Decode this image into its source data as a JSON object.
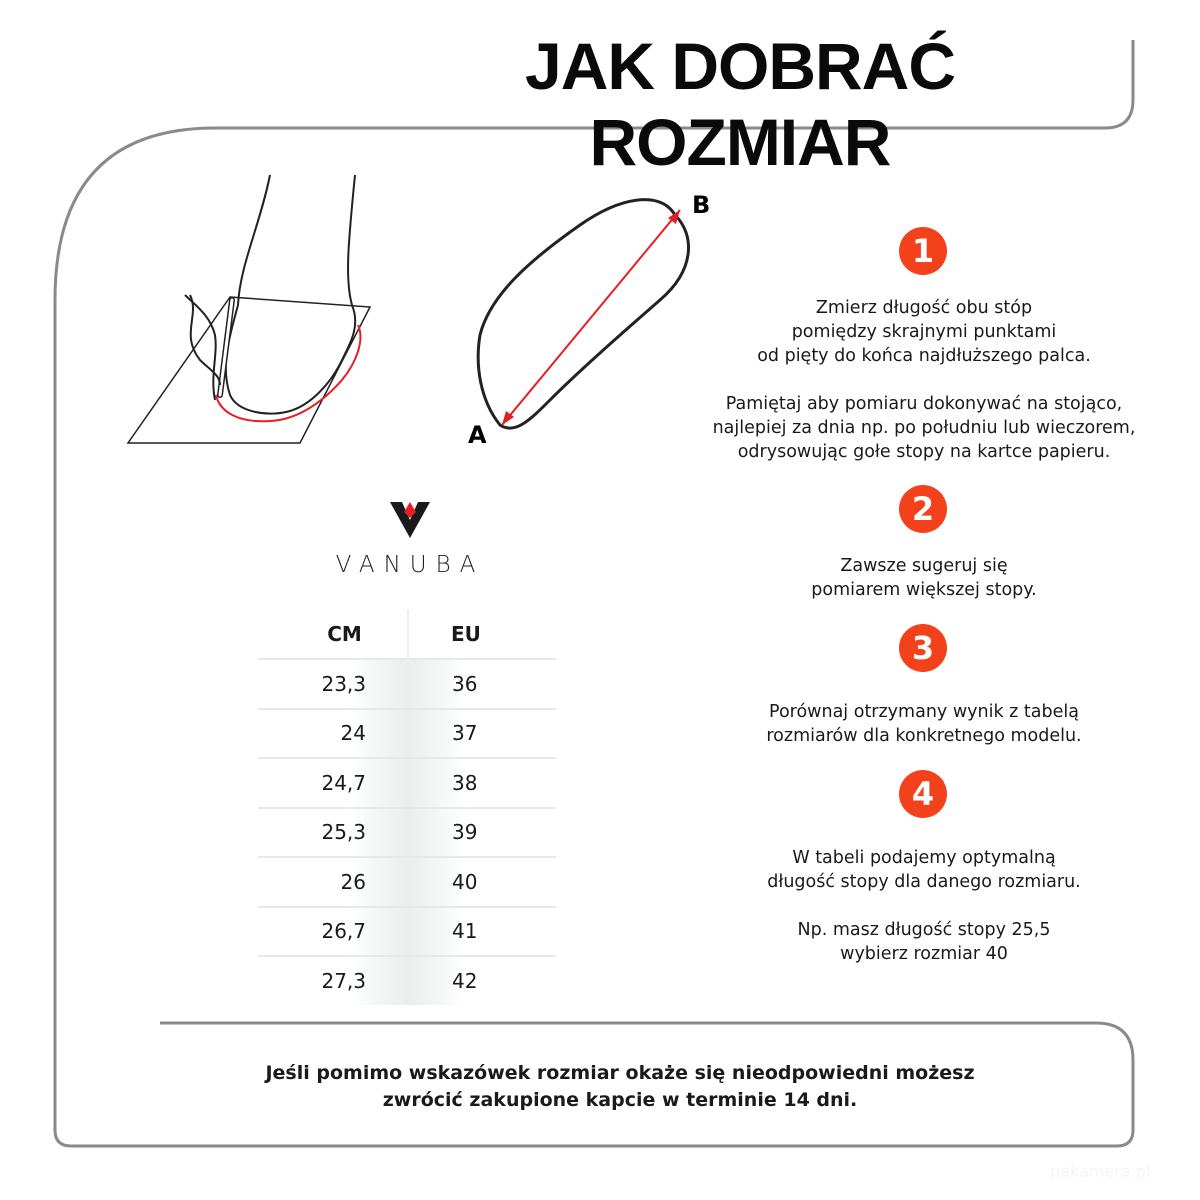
{
  "title": "JAK DOBRAĆ ROZMIAR",
  "accent_color": "#f2411b",
  "diagram": {
    "point_a": "A",
    "point_b": "B"
  },
  "brand": {
    "name": "VANUBA",
    "logo_colors": [
      "#1a1a1a",
      "#e31e24"
    ]
  },
  "table": {
    "headers": [
      "CM",
      "EU"
    ],
    "rows": [
      [
        "23,3",
        "36"
      ],
      [
        "24",
        "37"
      ],
      [
        "24,7",
        "38"
      ],
      [
        "25,3",
        "39"
      ],
      [
        "26",
        "40"
      ],
      [
        "26,7",
        "41"
      ],
      [
        "27,3",
        "42"
      ]
    ]
  },
  "steps": [
    {
      "number": "1",
      "paragraphs": [
        "Zmierz długość obu stóp\npomiędzy skrajnymi punktami\nod pięty do końca najdłuższego palca.",
        "Pamiętaj aby pomiaru dokonywać na stojąco,\nnajlepiej za dnia np. po południu lub wieczorem,\nodrysowując gołe stopy na kartce papieru."
      ]
    },
    {
      "number": "2",
      "paragraphs": [
        "Zawsze sugeruj się\npomiarem większej stopy."
      ]
    },
    {
      "number": "3",
      "paragraphs": [
        "Porównaj otrzymany wynik z tabelą\nrozmiarów dla konkretnego modelu."
      ]
    },
    {
      "number": "4",
      "paragraphs": [
        "W tabeli podajemy optymalną\ndługość stopy dla danego rozmiaru.",
        "Np. masz długość stopy 25,5\nwybierz rozmiar 40"
      ]
    }
  ],
  "footer": {
    "line1": "Jeśli pomimo wskazówek rozmiar okaże się nieodpowiedni możesz",
    "line2": "zwrócić zakupione kapcie w terminie 14 dni."
  },
  "watermark": "pakamera.pl"
}
